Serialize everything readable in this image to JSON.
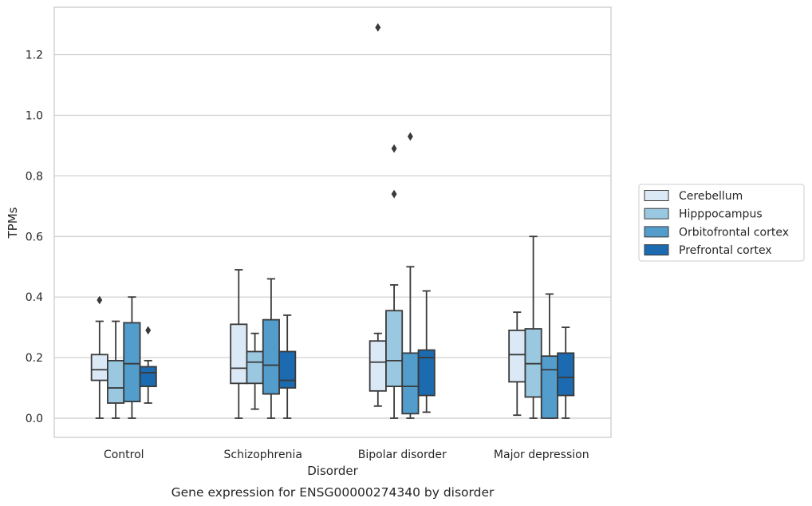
{
  "chart_data": {
    "type": "box",
    "title": "",
    "caption": "Gene expression for ENSG00000274340 by disorder",
    "xlabel": "Disorder",
    "ylabel": "TPMs",
    "ylim": [
      -0.063,
      1.36
    ],
    "yticks": [
      0.0,
      0.2,
      0.4,
      0.6,
      0.8,
      1.0,
      1.2
    ],
    "ytick_labels": [
      "0.0",
      "0.2",
      "0.4",
      "0.6",
      "0.8",
      "1.0",
      "1.2"
    ],
    "grid": "horizontal",
    "legend_position": "right",
    "categories": [
      "Control",
      "Schizophrenia",
      "Bipolar disorder",
      "Major depression"
    ],
    "series": [
      {
        "name": "Cerebellum",
        "color": "#dbe9f6",
        "boxes": [
          {
            "whislo": 0.0,
            "q1": 0.125,
            "med": 0.16,
            "q3": 0.21,
            "whishi": 0.32,
            "fliers": [
              0.39
            ]
          },
          {
            "whislo": 0.0,
            "q1": 0.115,
            "med": 0.165,
            "q3": 0.31,
            "whishi": 0.49,
            "fliers": []
          },
          {
            "whislo": 0.04,
            "q1": 0.09,
            "med": 0.185,
            "q3": 0.255,
            "whishi": 0.28,
            "fliers": [
              1.29
            ]
          },
          {
            "whislo": 0.01,
            "q1": 0.12,
            "med": 0.21,
            "q3": 0.29,
            "whishi": 0.35,
            "fliers": []
          }
        ]
      },
      {
        "name": "Hipppocampus",
        "color": "#9ac8e0",
        "boxes": [
          {
            "whislo": 0.0,
            "q1": 0.05,
            "med": 0.1,
            "q3": 0.19,
            "whishi": 0.32,
            "fliers": []
          },
          {
            "whislo": 0.03,
            "q1": 0.115,
            "med": 0.185,
            "q3": 0.22,
            "whishi": 0.28,
            "fliers": []
          },
          {
            "whislo": 0.0,
            "q1": 0.105,
            "med": 0.19,
            "q3": 0.355,
            "whishi": 0.44,
            "fliers": [
              0.74,
              0.89
            ]
          },
          {
            "whislo": 0.0,
            "q1": 0.07,
            "med": 0.18,
            "q3": 0.295,
            "whishi": 0.6,
            "fliers": []
          }
        ]
      },
      {
        "name": "Orbitofrontal cortex",
        "color": "#529dcc",
        "boxes": [
          {
            "whislo": 0.0,
            "q1": 0.055,
            "med": 0.18,
            "q3": 0.315,
            "whishi": 0.4,
            "fliers": []
          },
          {
            "whislo": 0.0,
            "q1": 0.08,
            "med": 0.175,
            "q3": 0.325,
            "whishi": 0.46,
            "fliers": []
          },
          {
            "whislo": 0.0,
            "q1": 0.015,
            "med": 0.105,
            "q3": 0.215,
            "whishi": 0.5,
            "fliers": [
              0.93
            ]
          },
          {
            "whislo": 0.0,
            "q1": 0.0,
            "med": 0.16,
            "q3": 0.205,
            "whishi": 0.41,
            "fliers": []
          }
        ]
      },
      {
        "name": "Prefrontal cortex",
        "color": "#1c6aaf",
        "boxes": [
          {
            "whislo": 0.05,
            "q1": 0.105,
            "med": 0.15,
            "q3": 0.17,
            "whishi": 0.19,
            "fliers": [
              0.29
            ]
          },
          {
            "whislo": 0.0,
            "q1": 0.1,
            "med": 0.125,
            "q3": 0.22,
            "whishi": 0.34,
            "fliers": []
          },
          {
            "whislo": 0.02,
            "q1": 0.075,
            "med": 0.2,
            "q3": 0.225,
            "whishi": 0.42,
            "fliers": []
          },
          {
            "whislo": 0.0,
            "q1": 0.075,
            "med": 0.135,
            "q3": 0.215,
            "whishi": 0.3,
            "fliers": []
          }
        ]
      }
    ]
  }
}
